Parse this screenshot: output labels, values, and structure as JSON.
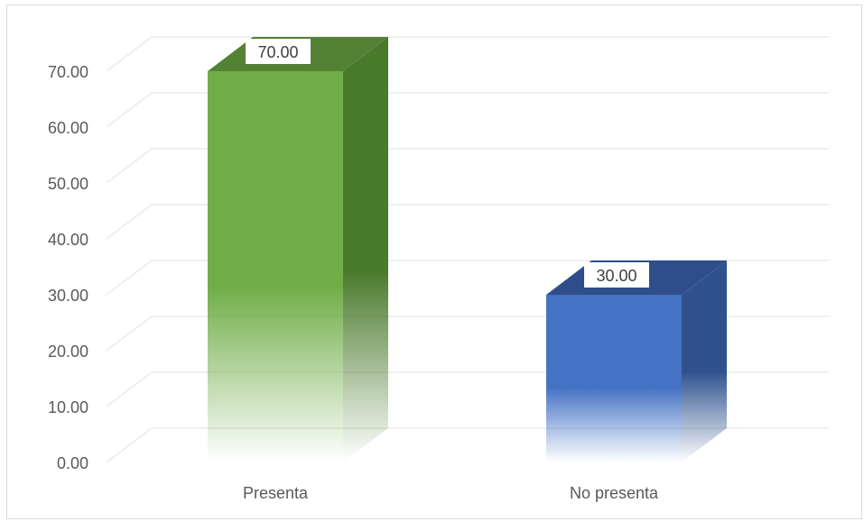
{
  "chart_data": {
    "type": "bar",
    "style": "3d-column",
    "categories": [
      "Presenta",
      "No presenta"
    ],
    "values": [
      70.0,
      30.0
    ],
    "value_labels": [
      "70.00",
      "30.00"
    ],
    "title": "",
    "xlabel": "",
    "ylabel": "",
    "ylim": [
      0,
      70
    ],
    "y_ticks": [
      "0.00",
      "10.00",
      "20.00",
      "30.00",
      "40.00",
      "50.00",
      "60.00",
      "70.00"
    ],
    "grid": true,
    "legend": "none",
    "colors": {
      "Presenta": {
        "front": "#70ad47",
        "side": "#4a7a2c",
        "top": "#548235"
      },
      "No presenta": {
        "front": "#4472c4",
        "side": "#2f528f",
        "top": "#2e4d8a"
      },
      "grid": "#eaeaea",
      "text": "#595959"
    }
  }
}
